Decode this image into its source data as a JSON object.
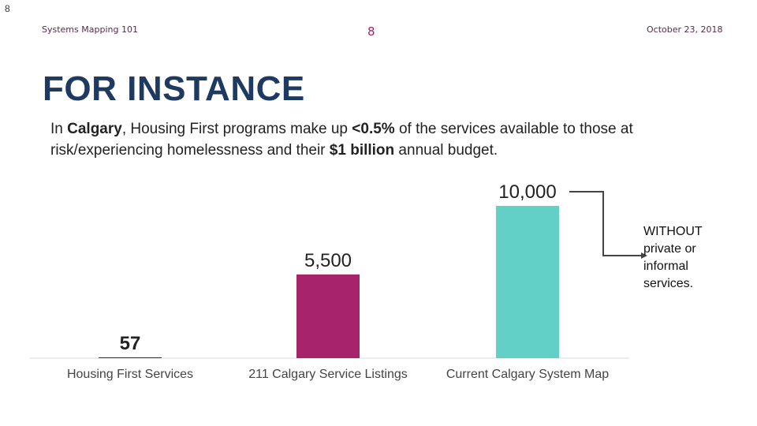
{
  "slide": {
    "corner_number": "8",
    "header_left": "Systems Mapping 101",
    "header_center": "8",
    "header_right": "October 23, 2018",
    "title": "FOR INSTANCE",
    "body": {
      "part1": "In ",
      "bold1": "Calgary",
      "part2": ", Housing First programs make up ",
      "bold2": "<0.5%",
      "part3": " of the services available to those at risk/experiencing homelessness and their ",
      "bold3": "$1 billion",
      "part4": " annual budget."
    },
    "annotation": "WITHOUT private or informal services."
  },
  "chart_data": {
    "type": "bar",
    "categories": [
      "Housing First Services",
      "211 Calgary Service Listings",
      "Current Calgary System Map"
    ],
    "values": [
      57,
      5500,
      10000
    ],
    "data_labels": [
      "57",
      "5,500",
      "10,000"
    ],
    "colors": [
      "#6b1f4f",
      "#a8246a",
      "#62d0c6"
    ],
    "title": "",
    "xlabel": "",
    "ylabel": "",
    "ylim": [
      0,
      10000
    ],
    "grid": false
  }
}
